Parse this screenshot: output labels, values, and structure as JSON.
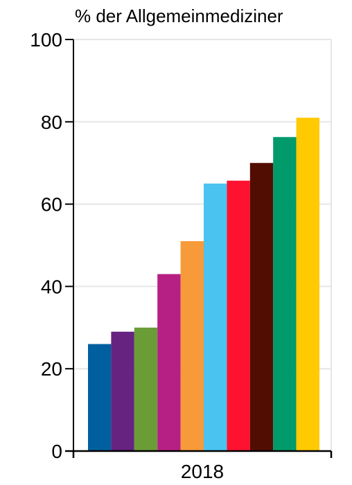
{
  "chart_data": {
    "type": "bar",
    "title": "",
    "ylabel": "% der Allgemeinmediziner",
    "xlabel": "",
    "categories": [
      "2018"
    ],
    "series": [
      {
        "values": [
          26
        ],
        "color": "#00609F"
      },
      {
        "values": [
          29
        ],
        "color": "#66237F"
      },
      {
        "values": [
          30
        ],
        "color": "#6A9C37"
      },
      {
        "values": [
          43
        ],
        "color": "#B62084"
      },
      {
        "values": [
          51
        ],
        "color": "#F79A3A"
      },
      {
        "values": [
          65
        ],
        "color": "#4BC3F1"
      },
      {
        "values": [
          65.7
        ],
        "color": "#FF1230"
      },
      {
        "values": [
          70
        ],
        "color": "#520D02"
      },
      {
        "values": [
          76.3
        ],
        "color": "#009A6B"
      },
      {
        "values": [
          81
        ],
        "color": "#FFCA00"
      }
    ],
    "ylim": [
      0,
      100
    ],
    "yticks": [
      0,
      20,
      40,
      60,
      80,
      100
    ],
    "grid": true,
    "legend": "none"
  }
}
